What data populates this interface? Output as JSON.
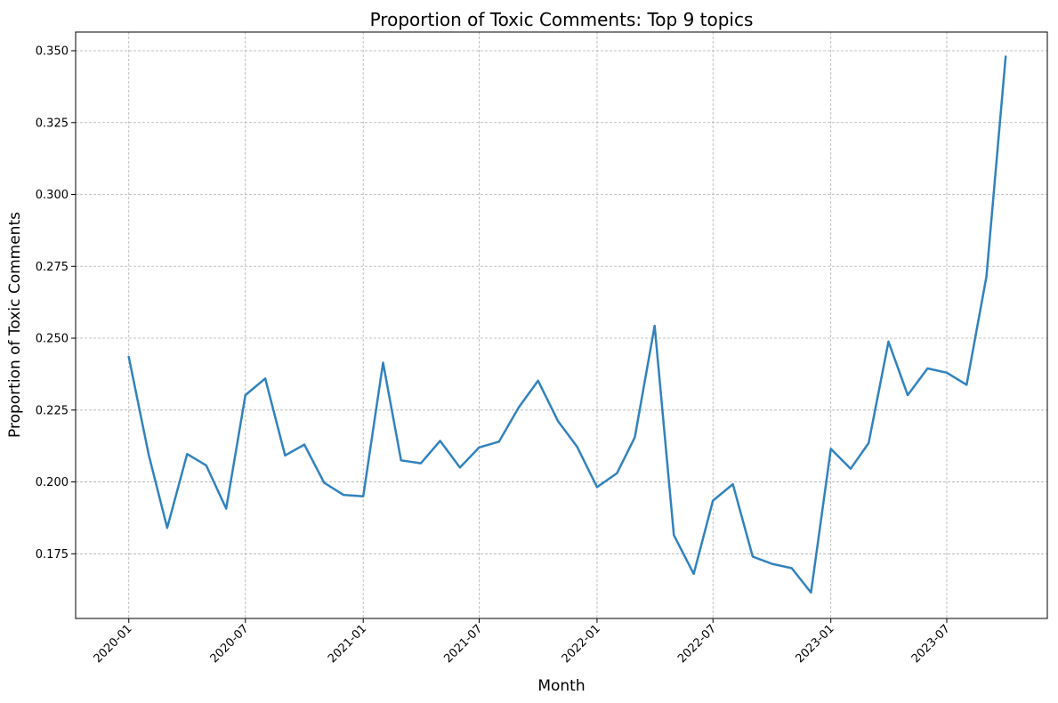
{
  "chart_data": {
    "type": "line",
    "title": "Proportion of Toxic Comments: Top 9 topics",
    "xlabel": "Month",
    "ylabel": "Proportion of Toxic Comments",
    "x_tick_labels": [
      "2020-01",
      "2020-07",
      "2021-01",
      "2021-07",
      "2022-01",
      "2022-07",
      "2023-01",
      "2023-07"
    ],
    "x_tick_months": [
      "2020-01",
      "2020-07",
      "2021-01",
      "2021-07",
      "2022-01",
      "2022-07",
      "2023-01",
      "2023-07"
    ],
    "y_ticks": [
      "0.175",
      "0.200",
      "0.225",
      "0.250",
      "0.275",
      "0.300",
      "0.325",
      "0.350"
    ],
    "xlim": [
      "2019-10-10",
      "2023-12-05"
    ],
    "ylim": [
      0.1525,
      0.3565
    ],
    "grid": true,
    "color": "#3182bd",
    "series": [
      {
        "x": [
          "2020-01",
          "2020-02",
          "2020-03",
          "2020-04",
          "2020-05",
          "2020-06",
          "2020-07",
          "2020-08",
          "2020-09",
          "2020-10",
          "2020-11",
          "2020-12",
          "2021-01",
          "2021-02",
          "2021-03",
          "2021-04",
          "2021-05",
          "2021-06",
          "2021-07",
          "2021-08",
          "2021-09",
          "2021-10",
          "2021-11",
          "2021-12",
          "2022-01",
          "2022-02",
          "2022-03",
          "2022-04",
          "2022-05",
          "2022-06",
          "2022-07",
          "2022-08",
          "2022-09",
          "2022-10",
          "2022-11",
          "2022-12",
          "2023-01",
          "2023-02",
          "2023-03",
          "2023-04",
          "2023-05",
          "2023-06",
          "2023-07",
          "2023-08",
          "2023-09",
          "2023-10"
        ],
        "values": [
          0.2435,
          0.2095,
          0.184,
          0.2097,
          0.2057,
          0.1907,
          0.2302,
          0.236,
          0.2092,
          0.213,
          0.1997,
          0.1955,
          0.195,
          0.2415,
          0.2075,
          0.2065,
          0.2143,
          0.205,
          0.212,
          0.214,
          0.226,
          0.2352,
          0.2212,
          0.2122,
          0.1982,
          0.203,
          0.2155,
          0.2543,
          0.1815,
          0.168,
          0.1935,
          0.1992,
          0.174,
          0.1715,
          0.17,
          0.1615,
          0.2115,
          0.2046,
          0.2135,
          0.2488,
          0.2302,
          0.2395,
          0.238,
          0.2338,
          0.2715,
          0.348
        ]
      }
    ]
  }
}
